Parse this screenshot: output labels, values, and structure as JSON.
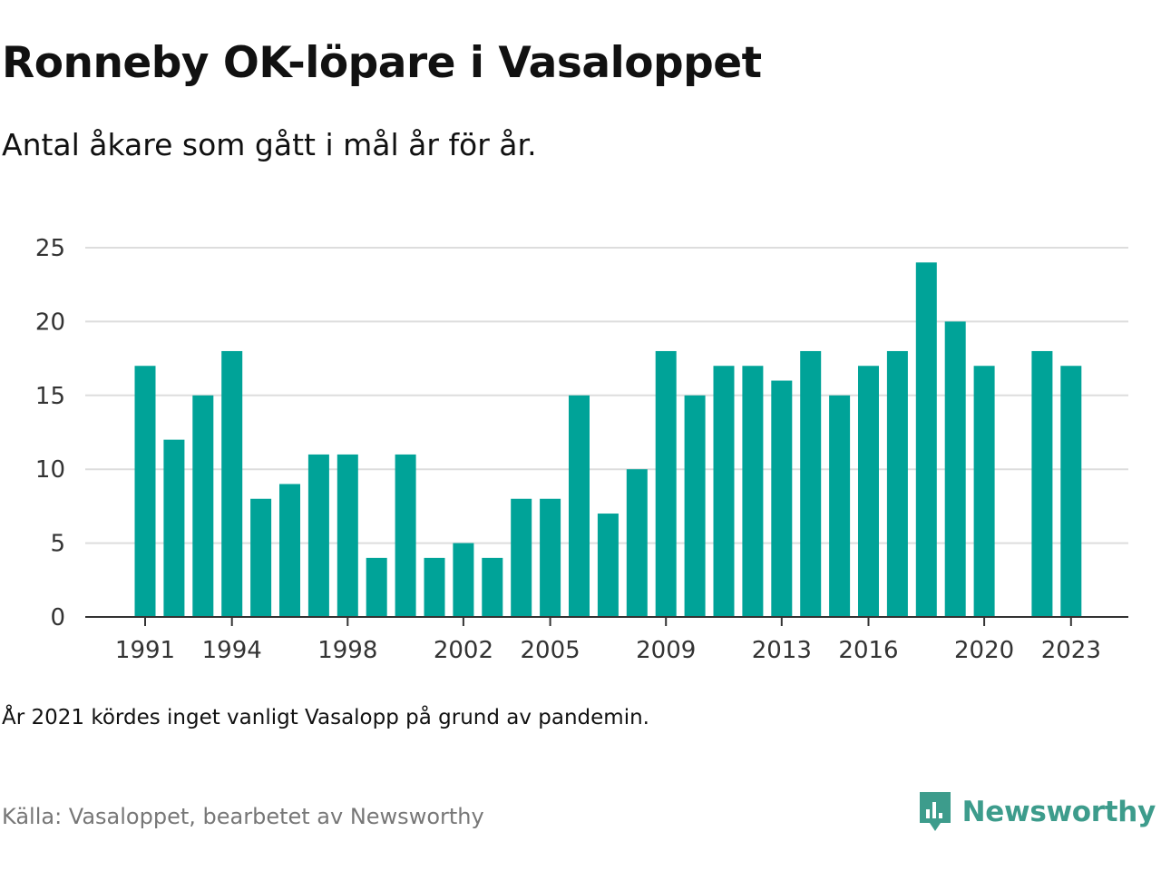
{
  "title": "Ronneby OK-löpare i Vasaloppet",
  "subtitle": "Antal åkare som gått i mål år för år.",
  "note": "År 2021 kördes inget vanligt Vasalopp på grund av pandemin.",
  "source": "Källa: Vasaloppet, bearbetet av Newsworthy",
  "brand": {
    "name": "Newsworthy",
    "logo_icon": "bar-chart-speech-bubble-icon",
    "color": "#3d9c8c"
  },
  "colors": {
    "bar": "#00a398",
    "grid": "#dddddd",
    "axis": "#333333"
  },
  "chart_data": {
    "type": "bar",
    "title": "Ronneby OK-löpare i Vasaloppet",
    "subtitle": "Antal åkare som gått i mål år för år.",
    "categories": [
      1991,
      1992,
      1993,
      1994,
      1995,
      1996,
      1997,
      1998,
      1999,
      2000,
      2001,
      2002,
      2003,
      2004,
      2005,
      2006,
      2007,
      2008,
      2009,
      2010,
      2011,
      2012,
      2013,
      2014,
      2015,
      2016,
      2017,
      2018,
      2019,
      2020,
      2021,
      2022,
      2023
    ],
    "values": [
      17,
      12,
      15,
      18,
      8,
      9,
      11,
      11,
      4,
      11,
      4,
      5,
      4,
      8,
      8,
      15,
      7,
      10,
      18,
      15,
      17,
      17,
      16,
      18,
      15,
      17,
      18,
      24,
      20,
      17,
      null,
      18,
      17
    ],
    "x_tick_labels": [
      "1991",
      "1994",
      "1998",
      "2002",
      "2005",
      "2009",
      "2013",
      "2016",
      "2020",
      "2023"
    ],
    "y_ticks": [
      0,
      5,
      10,
      15,
      20,
      25
    ],
    "ylim": [
      0,
      25
    ],
    "xlabel": "",
    "ylabel": "",
    "grid": true
  }
}
